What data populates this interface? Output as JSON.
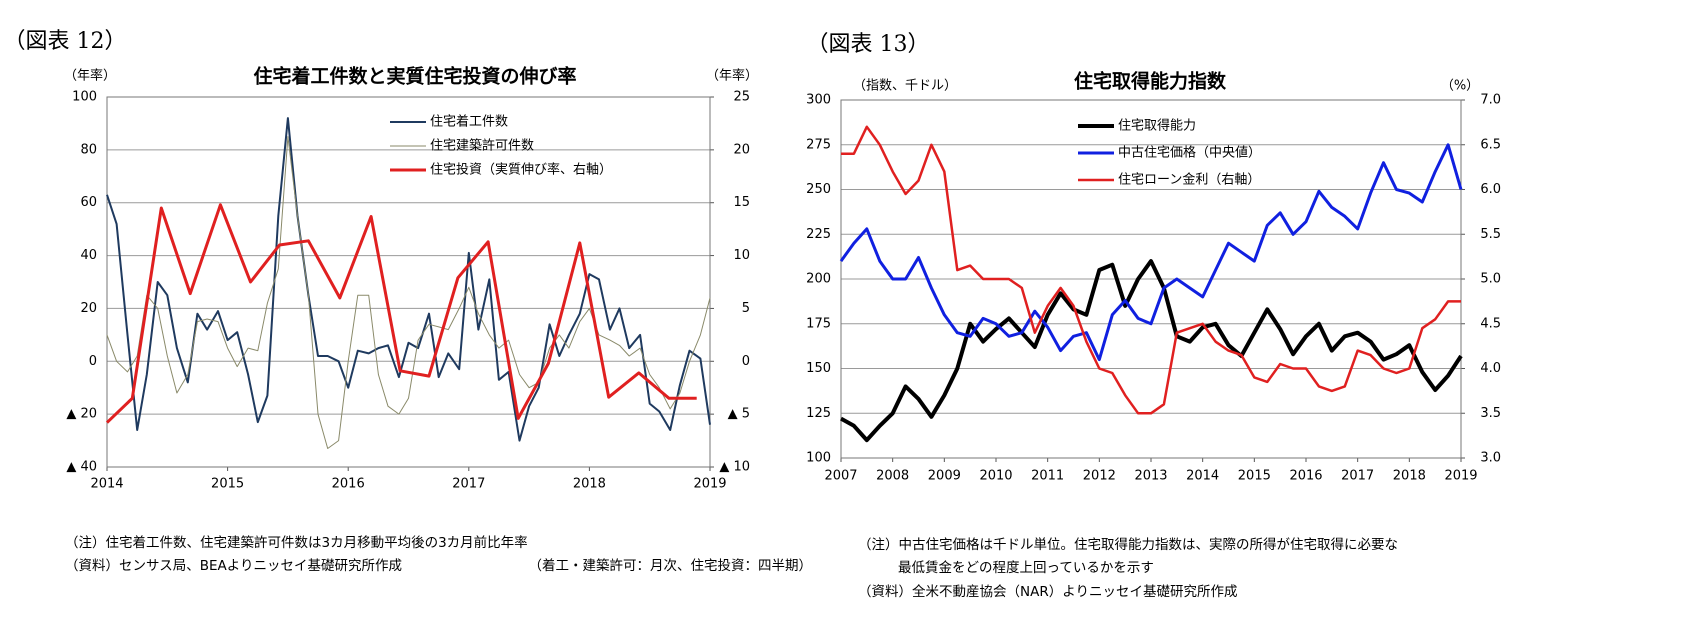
{
  "chart_data": [
    {
      "type": "line",
      "figure_label": "（図表 12）",
      "title": "住宅着工件数と実質住宅投資の伸び率",
      "y_label": "（年率）",
      "y2_label": "（年率）",
      "notes": [
        "（注）住宅着工件数、住宅建築許可件数は3カ月移動平均後の3カ月前比年率",
        "（資料）センサス局、BEAよりニッセイ基礎研究所作成",
        "（着工・建築許可：月次、住宅投資：四半期）"
      ],
      "xlim": [
        2014,
        2019
      ],
      "xticks": [
        2014,
        2015,
        2016,
        2017,
        2018,
        2019
      ],
      "ylim": [
        -40,
        100
      ],
      "yticks": [
        100,
        80,
        60,
        40,
        20,
        0,
        {
          "value": -20,
          "label": "▲ 20"
        },
        {
          "value": -40,
          "label": "▲ 40"
        }
      ],
      "y2lim": [
        -10,
        25
      ],
      "y2ticks": [
        25,
        20,
        15,
        10,
        5,
        0,
        {
          "value": -5,
          "label": "▲ 5"
        },
        {
          "value": -10,
          "label": "▲ 10"
        }
      ],
      "grid": true,
      "x": [
        2014,
        2014.08,
        2014.17,
        2014.25,
        2014.33,
        2014.42,
        2014.5,
        2014.58,
        2014.67,
        2014.75,
        2014.83,
        2014.92,
        2015,
        2015.08,
        2015.17,
        2015.25,
        2015.33,
        2015.42,
        2015.5,
        2015.58,
        2015.67,
        2015.75,
        2015.83,
        2015.92,
        2016,
        2016.08,
        2016.17,
        2016.25,
        2016.33,
        2016.42,
        2016.5,
        2016.58,
        2016.67,
        2016.75,
        2016.83,
        2016.92,
        2017,
        2017.08,
        2017.17,
        2017.25,
        2017.33,
        2017.42,
        2017.5,
        2017.58,
        2017.67,
        2017.75,
        2017.83,
        2017.92,
        2018,
        2018.08,
        2018.17,
        2018.25,
        2018.33,
        2018.42,
        2018.5,
        2018.58,
        2018.67,
        2018.75,
        2018.83,
        2018.92,
        2019
      ],
      "series": [
        {
          "name": "住宅着工件数",
          "color": "#1f3a5f",
          "width": 2,
          "values": [
            63,
            52,
            10,
            -26,
            -5,
            30,
            25,
            5,
            -8,
            18,
            12,
            19,
            8,
            11,
            -5,
            -23,
            -13,
            55,
            92,
            55,
            25,
            2,
            2,
            0,
            -10,
            4,
            3,
            5,
            6,
            -6,
            7,
            5,
            18,
            -6,
            3,
            -3,
            41,
            12,
            31,
            -7,
            -4,
            -30,
            -17,
            -10,
            14,
            2,
            10,
            18,
            33,
            31,
            12,
            20,
            5,
            10,
            -16,
            -19,
            -26,
            -9,
            4,
            1,
            -24
          ]
        },
        {
          "name": "住宅建築許可件数",
          "color": "#8a8a6a",
          "width": 1,
          "values": [
            10,
            0,
            -4,
            2,
            25,
            20,
            2,
            -12,
            -5,
            15,
            16,
            15,
            5,
            -2,
            5,
            4,
            22,
            35,
            85,
            55,
            25,
            -20,
            -33,
            -30,
            0,
            25,
            25,
            -5,
            -17,
            -20,
            -14,
            8,
            14,
            13,
            12,
            20,
            28,
            18,
            10,
            5,
            8,
            -5,
            -10,
            -8,
            5,
            10,
            5,
            15,
            20,
            10,
            8,
            6,
            2,
            5,
            -5,
            -10,
            -18,
            -12,
            0,
            10,
            24
          ]
        },
        {
          "name": "住宅投資（実質伸び率、右軸）",
          "color": "#e02020",
          "width": 3,
          "axis": "y2",
          "x": [
            2014,
            2014.21,
            2014.45,
            2014.69,
            2014.94,
            2015.19,
            2015.43,
            2015.67,
            2015.93,
            2016.19,
            2016.43,
            2016.67,
            2016.91,
            2017.16,
            2017.41,
            2017.66,
            2017.92,
            2018.16,
            2018.41,
            2018.66,
            2018.89
          ],
          "values": [
            -5.8,
            -3.5,
            14.5,
            6.4,
            14.8,
            7.5,
            11.0,
            11.4,
            6.0,
            13.7,
            -0.9,
            -1.4,
            7.9,
            11.3,
            -5.4,
            -0.2,
            11.2,
            -3.4,
            -1.1,
            -3.5,
            -3.5
          ]
        }
      ]
    },
    {
      "type": "line",
      "figure_label": "（図表 13）",
      "title": "住宅取得能力指数",
      "y_label": "（指数、千ドル）",
      "y2_label": "（%）",
      "notes": [
        "（注）中古住宅価格は千ドル単位。住宅取得能力指数は、実際の所得が住宅取得に必要な",
        "最低賃金をどの程度上回っているかを示す",
        "（資料）全米不動産協会（NAR）よりニッセイ基礎研究所作成"
      ],
      "xlim": [
        2007,
        2019
      ],
      "xticks": [
        2007,
        2008,
        2009,
        2010,
        2011,
        2012,
        2013,
        2014,
        2015,
        2016,
        2017,
        2018,
        2019
      ],
      "ylim": [
        100,
        300
      ],
      "yticks": [
        300,
        275,
        250,
        225,
        200,
        175,
        150,
        125,
        100
      ],
      "y2lim": [
        3,
        7
      ],
      "y2ticks": [
        {
          "value": 7,
          "label": "7.0"
        },
        6.5,
        {
          "value": 6,
          "label": "6.0"
        },
        5.5,
        {
          "value": 5,
          "label": "5.0"
        },
        4.5,
        {
          "value": 4,
          "label": "4.0"
        },
        3.5,
        {
          "value": 3,
          "label": "3.0"
        }
      ],
      "grid": true,
      "x": [
        2007,
        2007.25,
        2007.5,
        2007.75,
        2008,
        2008.25,
        2008.5,
        2008.75,
        2009,
        2009.25,
        2009.5,
        2009.75,
        2010,
        2010.25,
        2010.5,
        2010.75,
        2011,
        2011.25,
        2011.5,
        2011.75,
        2012,
        2012.25,
        2012.5,
        2012.75,
        2013,
        2013.25,
        2013.5,
        2013.75,
        2014,
        2014.25,
        2014.5,
        2014.75,
        2015,
        2015.25,
        2015.5,
        2015.75,
        2016,
        2016.25,
        2016.5,
        2016.75,
        2017,
        2017.25,
        2017.5,
        2017.75,
        2018,
        2018.25,
        2018.5,
        2018.75,
        2019
      ],
      "series": [
        {
          "name": "住宅取得能力",
          "color": "#000000",
          "width": 4,
          "values": [
            122,
            118,
            110,
            118,
            125,
            140,
            133,
            123,
            135,
            150,
            175,
            165,
            172,
            178,
            170,
            162,
            180,
            192,
            183,
            180,
            205,
            208,
            185,
            200,
            210,
            195,
            168,
            165,
            173,
            175,
            163,
            157,
            170,
            183,
            172,
            158,
            168,
            175,
            160,
            168,
            170,
            165,
            155,
            158,
            163,
            148,
            138,
            146,
            157
          ]
        },
        {
          "name": "中古住宅価格（中央値）",
          "color": "#1020e0",
          "width": 3,
          "values": [
            210,
            220,
            228,
            210,
            200,
            200,
            212,
            195,
            180,
            170,
            168,
            178,
            175,
            168,
            170,
            182,
            173,
            160,
            168,
            170,
            155,
            180,
            188,
            178,
            175,
            195,
            200,
            195,
            190,
            205,
            220,
            215,
            210,
            230,
            237,
            225,
            232,
            249,
            240,
            235,
            228,
            248,
            265,
            250,
            248,
            243,
            260,
            275,
            250
          ]
        },
        {
          "name": "住宅ローン金利（右軸）",
          "color": "#e02020",
          "width": 2.5,
          "axis": "y2",
          "values": [
            6.4,
            6.4,
            6.7,
            6.5,
            6.2,
            5.95,
            6.1,
            6.5,
            6.2,
            5.1,
            5.15,
            5.0,
            5.0,
            5.0,
            4.9,
            4.4,
            4.7,
            4.9,
            4.7,
            4.3,
            4.0,
            3.95,
            3.7,
            3.5,
            3.5,
            3.6,
            4.4,
            4.45,
            4.5,
            4.3,
            4.2,
            4.15,
            3.9,
            3.85,
            4.05,
            4.0,
            4.0,
            3.8,
            3.75,
            3.8,
            4.2,
            4.15,
            4.0,
            3.95,
            4.0,
            4.45,
            4.55,
            4.75,
            4.75
          ]
        }
      ]
    }
  ]
}
